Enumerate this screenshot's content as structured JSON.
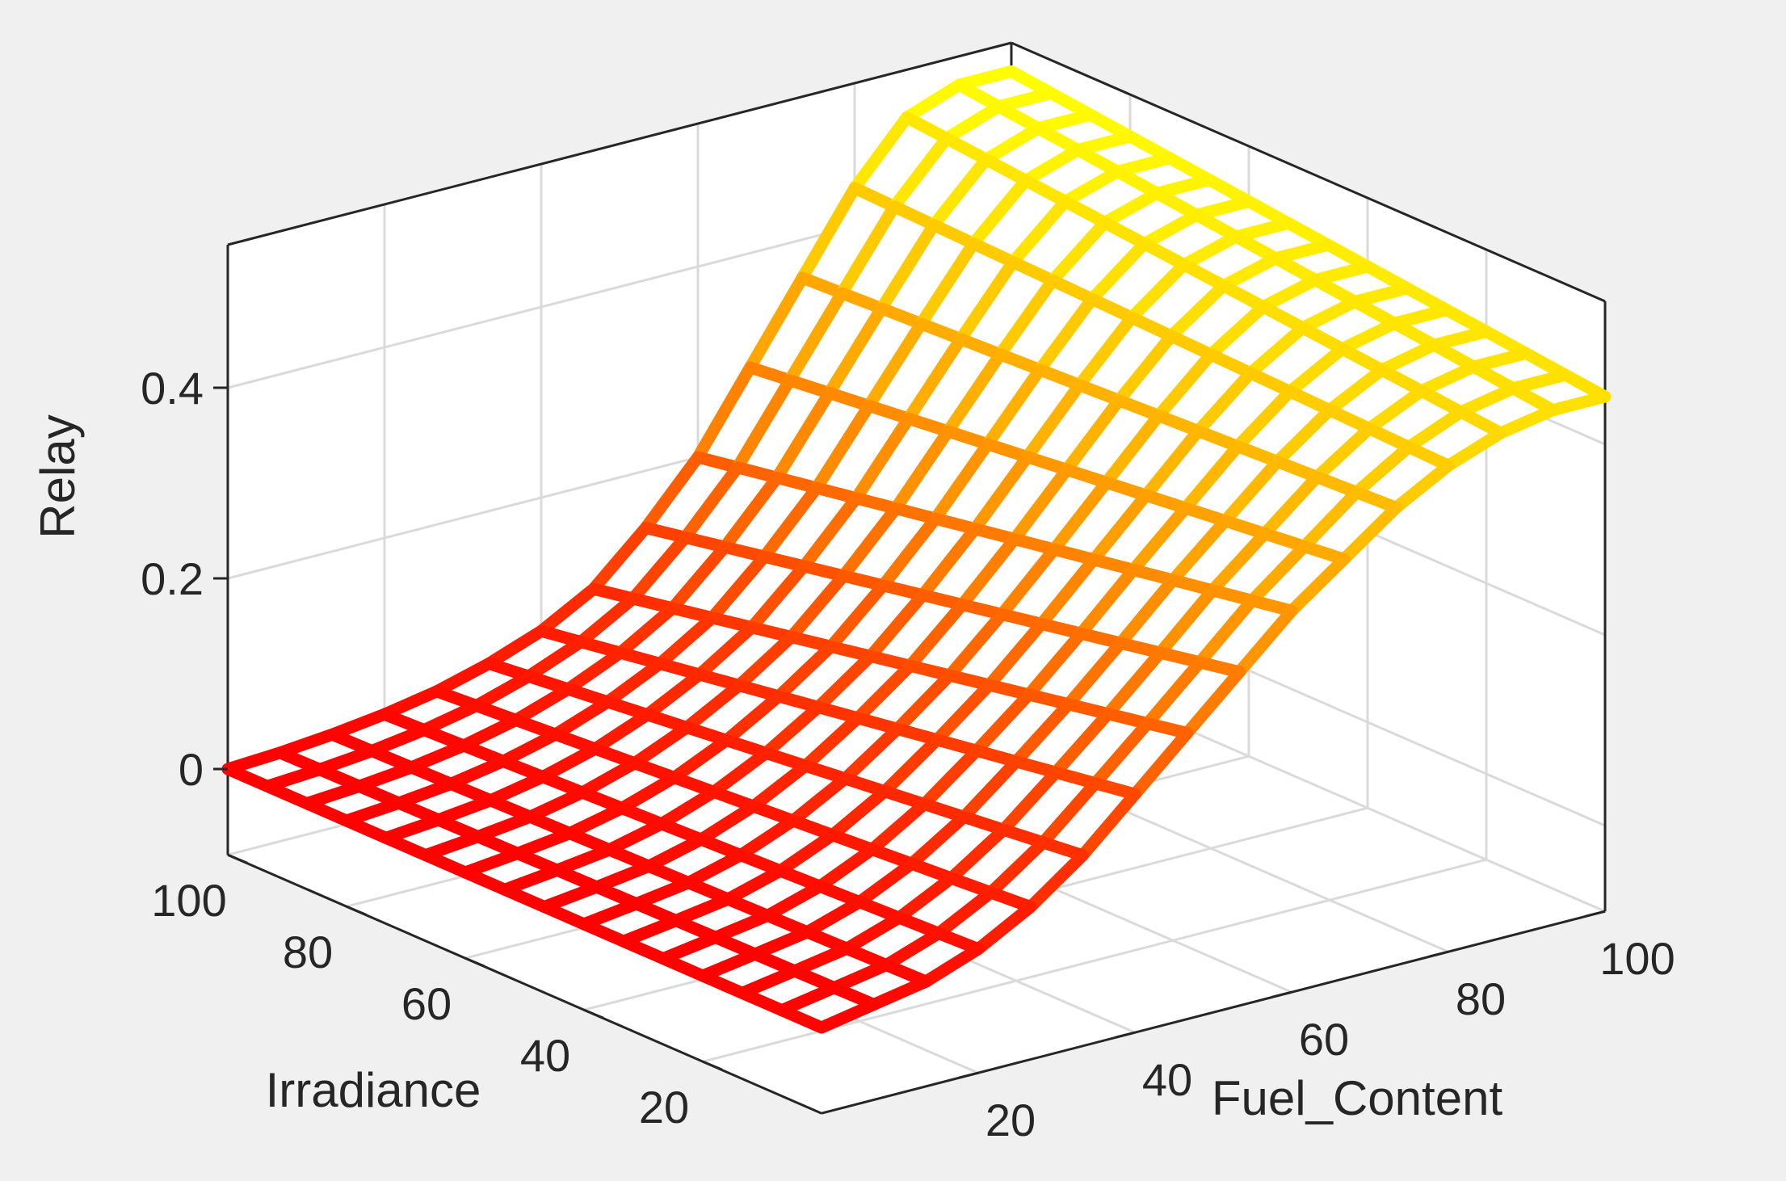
{
  "colors": {
    "figure_background": "#f0f0f0",
    "axes_background": "#ffffff",
    "colormap": [
      "#ff0000",
      "#ff8c00",
      "#ffff00"
    ]
  },
  "chart_data": {
    "type": "surface",
    "xlabel": "Fuel_Content",
    "ylabel": "Irradiance",
    "zlabel": "Relay",
    "xlim": [
      0,
      100
    ],
    "ylim": [
      0,
      100
    ],
    "zlim": [
      -0.09,
      0.55
    ],
    "xticks": [
      20,
      40,
      60,
      80,
      100
    ],
    "yticks": [
      20,
      40,
      60,
      80,
      100
    ],
    "zticks": [
      0,
      0.2,
      0.4
    ],
    "xtick_labels": [
      "20",
      "40",
      "60",
      "80",
      "100"
    ],
    "ytick_labels": [
      "20",
      "40",
      "60",
      "80",
      "100"
    ],
    "ztick_labels": [
      "0",
      "0.2",
      "0.4"
    ],
    "grid": true,
    "mesh_x": [
      0,
      6.67,
      13.33,
      20,
      26.67,
      33.33,
      40,
      46.67,
      53.33,
      60,
      66.67,
      73.33,
      80,
      86.67,
      93.33,
      100
    ],
    "mesh_y": [
      0,
      6.67,
      13.33,
      20,
      26.67,
      33.33,
      40,
      46.67,
      53.33,
      60,
      66.67,
      73.33,
      80,
      86.67,
      93.33,
      100
    ],
    "surface_profile": {
      "description_free_model": true,
      "z_at_low_irradiance": [
        0.0,
        0.01,
        0.02,
        0.04,
        0.07,
        0.11,
        0.16,
        0.21,
        0.26,
        0.31,
        0.35,
        0.39,
        0.42,
        0.44,
        0.45,
        0.45
      ],
      "z_at_high_irradiance": [
        0.0,
        0.003,
        0.008,
        0.015,
        0.025,
        0.04,
        0.06,
        0.09,
        0.14,
        0.2,
        0.28,
        0.36,
        0.44,
        0.5,
        0.52,
        0.52
      ]
    }
  }
}
